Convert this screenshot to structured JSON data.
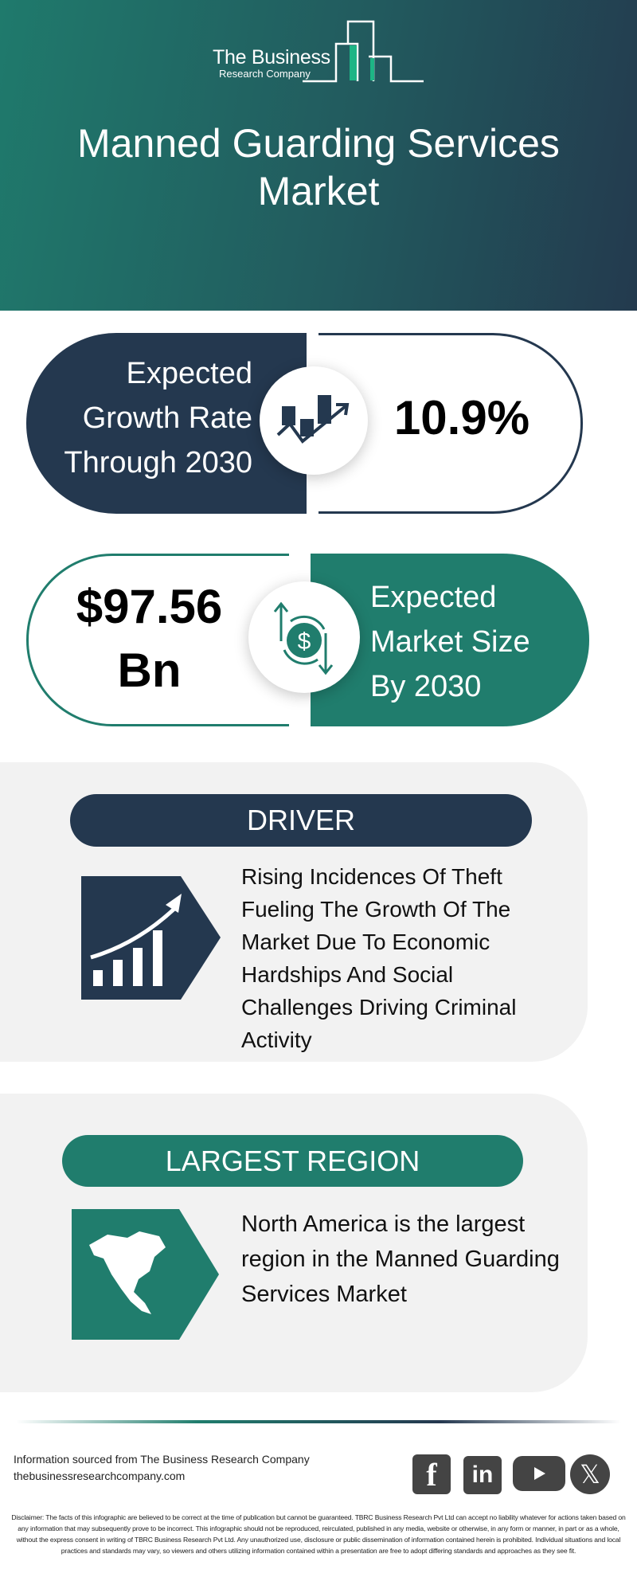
{
  "header": {
    "logo": {
      "line1": "The Business",
      "line2": "Research Company"
    },
    "title": "Manned Guarding Services Market"
  },
  "growth": {
    "label": "Expected Growth Rate Through 2030",
    "value": "10.9%",
    "icon": "growth-chart-icon"
  },
  "market_size": {
    "value_line1": "$97.56",
    "value_line2": "Bn",
    "label": "Expected Market Size By 2030",
    "icon": "dollar-exchange-icon"
  },
  "driver": {
    "heading": "DRIVER",
    "text": "Rising Incidences Of Theft Fueling The Growth Of The Market Due To Economic Hardships And Social Challenges Driving Criminal Activity",
    "icon": "rising-bar-chart-icon"
  },
  "region": {
    "heading": "LARGEST REGION",
    "text": "North America is the largest region in the Manned Guarding Services Market",
    "icon": "north-america-map-icon"
  },
  "footer": {
    "source": "Information sourced from The Business Research Company",
    "website": "thebusinessresearchcompany.com",
    "social": [
      "facebook",
      "linkedin",
      "youtube",
      "x"
    ],
    "disclaimer": "Disclaimer: The facts of this infographic are believed to be correct at the time of publication but cannot be guaranteed. TBRC Business Research Pvt Ltd can accept no liability whatever for actions taken based on any information that may subsequently prove to be incorrect. This infographic should not be reproduced, reirculated, published in any media, website or otherwise, in any form or manner, in part or as a whole, without the express consent in writing of TBRC Business Research Pvt Ltd. Any unauthorized use, disclosure or public dissemination of information contained herein is prohibited. Individual situations and local practices and standards may vary, so viewers and others utilizing information contained within a presentation are free to adopt differing standards and approaches as they see fit."
  },
  "colors": {
    "navy": "#24384f",
    "teal": "#207d6d",
    "panel": "#f2f2f2"
  }
}
